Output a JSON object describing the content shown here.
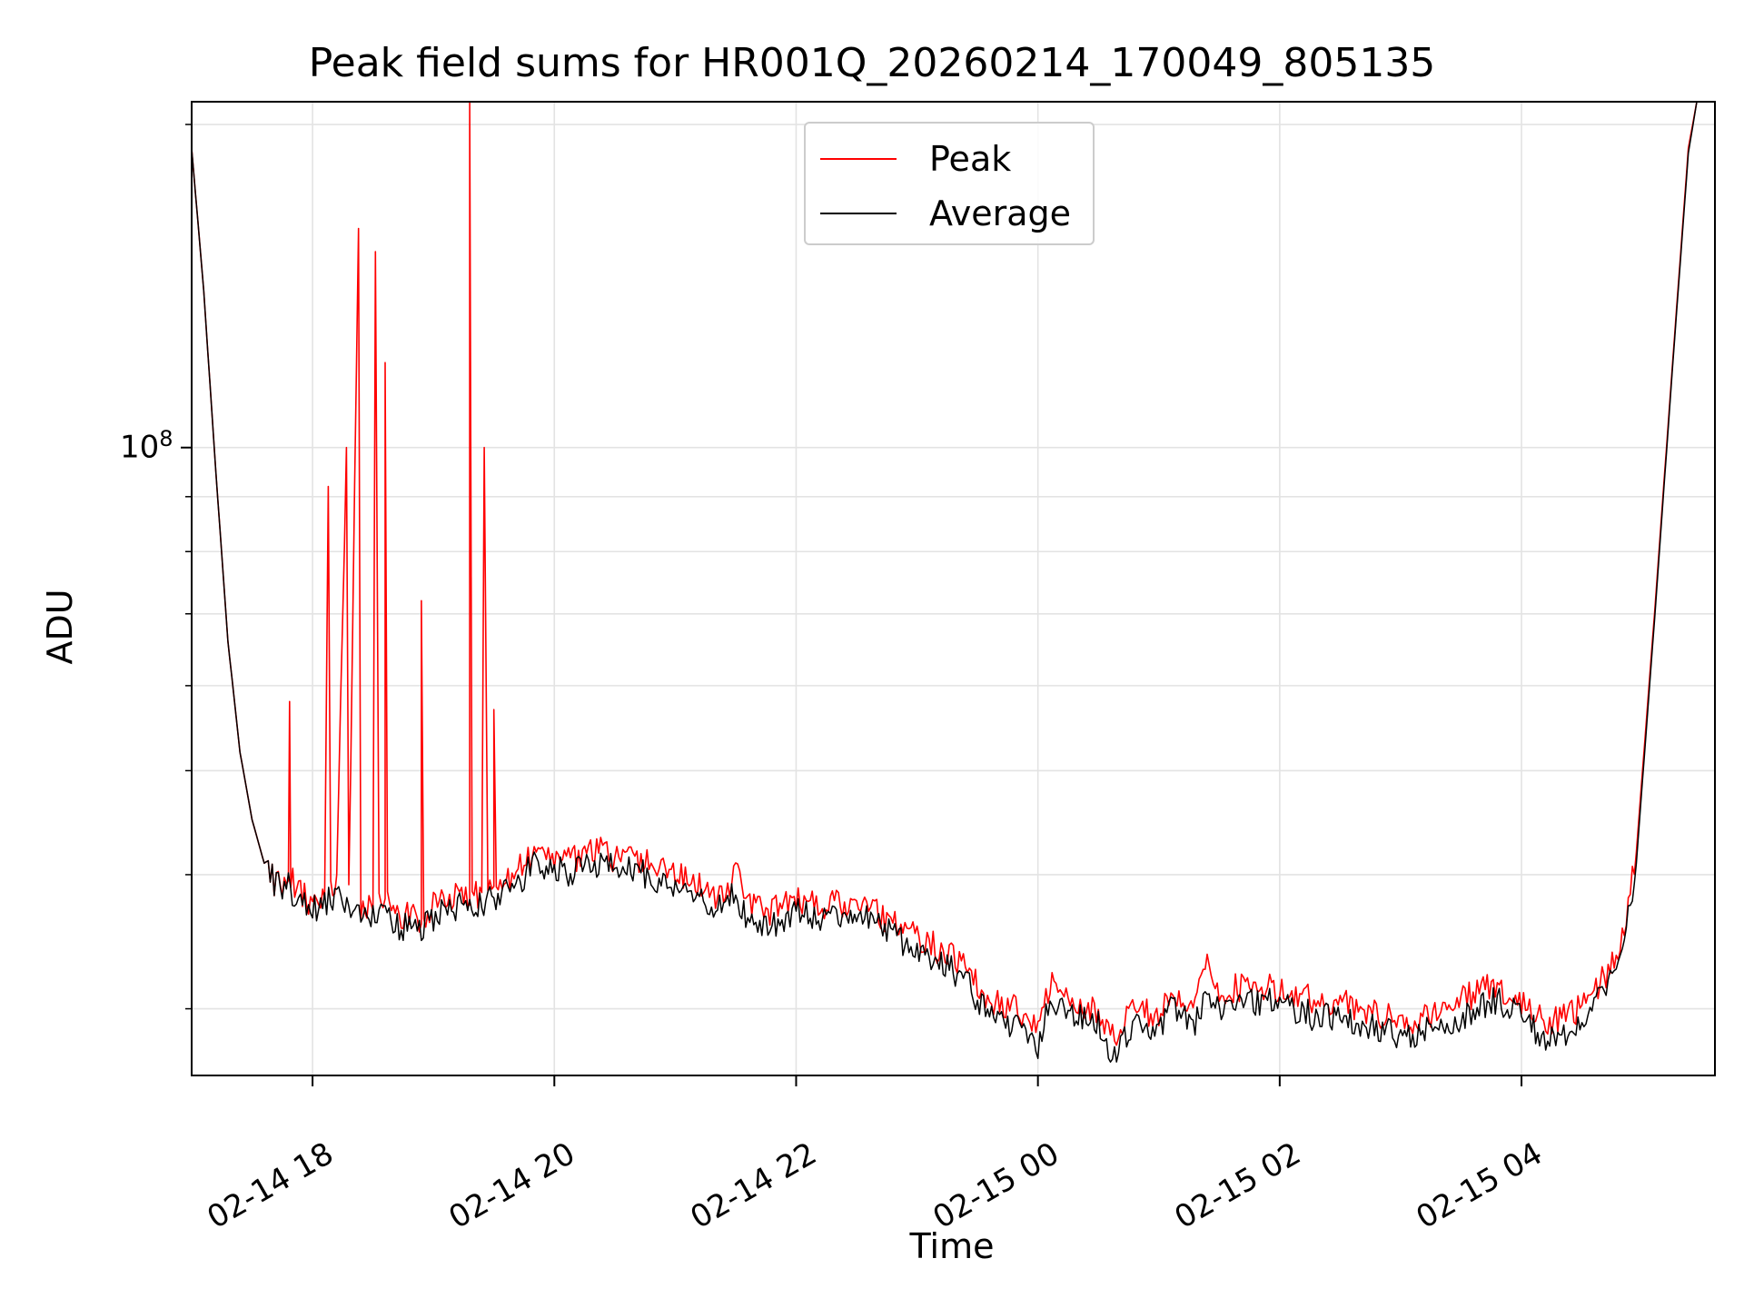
{
  "chart_data": {
    "type": "line",
    "title": "Peak field sums for HR001Q_20260214_170049_805135",
    "xlabel": "Time",
    "ylabel": "ADU",
    "yscale": "log",
    "ylim": [
      26000000,
      210000000
    ],
    "xlim": [
      17.0,
      29.6
    ],
    "x_units": "hours since 2026-02-14 00:00",
    "grid": true,
    "legend_position": "top-center",
    "x_ticks": [
      {
        "value": 18,
        "label": "02-14 18"
      },
      {
        "value": 20,
        "label": "02-14 20"
      },
      {
        "value": 22,
        "label": "02-14 22"
      },
      {
        "value": 24,
        "label": "02-15 00"
      },
      {
        "value": 26,
        "label": "02-15 02"
      },
      {
        "value": 28,
        "label": "02-15 04"
      }
    ],
    "y_ticks": [
      {
        "value": 100000000,
        "base": "10",
        "exp": "8"
      }
    ],
    "series": [
      {
        "name": "Peak",
        "color": "#ff0000",
        "points": [
          [
            17.0,
            190000000
          ],
          [
            17.1,
            140000000
          ],
          [
            17.2,
            95000000
          ],
          [
            17.3,
            66000000
          ],
          [
            17.4,
            52000000
          ],
          [
            17.5,
            45000000
          ],
          [
            17.6,
            41000000
          ],
          [
            17.7,
            39000000
          ],
          [
            17.8,
            39500000
          ],
          [
            17.81,
            58000000
          ],
          [
            17.82,
            39500000
          ],
          [
            17.9,
            38500000
          ],
          [
            18.0,
            37500000
          ],
          [
            18.1,
            38000000
          ],
          [
            18.13,
            92000000
          ],
          [
            18.15,
            38500000
          ],
          [
            18.2,
            39000000
          ],
          [
            18.28,
            100000000
          ],
          [
            18.3,
            38000000
          ],
          [
            18.38,
            160000000
          ],
          [
            18.4,
            37500000
          ],
          [
            18.5,
            37000000
          ],
          [
            18.52,
            150000000
          ],
          [
            18.55,
            37500000
          ],
          [
            18.6,
            38000000
          ],
          [
            18.6,
            120000000
          ],
          [
            18.62,
            37500000
          ],
          [
            18.7,
            37000000
          ],
          [
            18.8,
            36500000
          ],
          [
            18.9,
            36000000
          ],
          [
            18.9,
            72000000
          ],
          [
            18.92,
            36500000
          ],
          [
            19.0,
            37500000
          ],
          [
            19.1,
            38000000
          ],
          [
            19.2,
            38500000
          ],
          [
            19.3,
            37500000
          ],
          [
            19.3,
            210000000
          ],
          [
            19.32,
            38000000
          ],
          [
            19.4,
            38500000
          ],
          [
            19.42,
            100000000
          ],
          [
            19.45,
            38500000
          ],
          [
            19.5,
            39000000
          ],
          [
            19.5,
            57000000
          ],
          [
            19.52,
            39000000
          ],
          [
            19.6,
            39500000
          ],
          [
            19.7,
            40500000
          ],
          [
            19.8,
            41500000
          ],
          [
            19.9,
            42000000
          ],
          [
            20.0,
            41500000
          ],
          [
            20.1,
            41000000
          ],
          [
            20.2,
            41500000
          ],
          [
            20.3,
            42000000
          ],
          [
            20.4,
            42000000
          ],
          [
            20.5,
            41500000
          ],
          [
            20.6,
            41500000
          ],
          [
            20.7,
            41000000
          ],
          [
            20.8,
            41000000
          ],
          [
            21.0,
            40000000
          ],
          [
            21.2,
            39000000
          ],
          [
            21.4,
            38000000
          ],
          [
            21.5,
            40500000
          ],
          [
            21.6,
            37500000
          ],
          [
            21.8,
            37000000
          ],
          [
            22.0,
            38000000
          ],
          [
            22.2,
            37500000
          ],
          [
            22.4,
            37500000
          ],
          [
            22.6,
            37500000
          ],
          [
            22.8,
            36000000
          ],
          [
            23.0,
            35000000
          ],
          [
            23.2,
            34000000
          ],
          [
            23.4,
            33000000
          ],
          [
            23.6,
            30500000
          ],
          [
            23.8,
            30000000
          ],
          [
            24.0,
            28500000
          ],
          [
            24.1,
            31500000
          ],
          [
            24.3,
            30500000
          ],
          [
            24.5,
            30000000
          ],
          [
            24.6,
            28000000
          ],
          [
            24.8,
            30000000
          ],
          [
            25.0,
            29500000
          ],
          [
            25.1,
            31000000
          ],
          [
            25.3,
            30000000
          ],
          [
            25.4,
            33000000
          ],
          [
            25.5,
            31000000
          ],
          [
            25.7,
            31500000
          ],
          [
            25.9,
            31500000
          ],
          [
            26.1,
            31000000
          ],
          [
            26.3,
            30500000
          ],
          [
            26.5,
            30500000
          ],
          [
            26.7,
            30000000
          ],
          [
            26.9,
            29500000
          ],
          [
            27.0,
            29000000
          ],
          [
            27.2,
            29500000
          ],
          [
            27.4,
            30000000
          ],
          [
            27.6,
            31000000
          ],
          [
            27.8,
            31500000
          ],
          [
            28.0,
            30500000
          ],
          [
            28.2,
            29000000
          ],
          [
            28.4,
            29500000
          ],
          [
            28.6,
            31000000
          ],
          [
            28.8,
            33500000
          ],
          [
            28.95,
            42000000
          ],
          [
            29.1,
            70000000
          ],
          [
            29.25,
            120000000
          ],
          [
            29.38,
            190000000
          ],
          [
            29.45,
            210000000
          ],
          [
            29.6,
            210000000
          ]
        ]
      },
      {
        "name": "Average",
        "color": "#000000",
        "points": [
          [
            17.0,
            190000000
          ],
          [
            17.1,
            140000000
          ],
          [
            17.2,
            95000000
          ],
          [
            17.3,
            66000000
          ],
          [
            17.4,
            52000000
          ],
          [
            17.5,
            45000000
          ],
          [
            17.6,
            41000000
          ],
          [
            17.7,
            39000000
          ],
          [
            17.8,
            39000000
          ],
          [
            17.9,
            38000000
          ],
          [
            18.0,
            37000000
          ],
          [
            18.1,
            37500000
          ],
          [
            18.2,
            38500000
          ],
          [
            18.3,
            37000000
          ],
          [
            18.4,
            36500000
          ],
          [
            18.5,
            36500000
          ],
          [
            18.6,
            36500000
          ],
          [
            18.7,
            36000000
          ],
          [
            18.8,
            35500000
          ],
          [
            18.9,
            35500000
          ],
          [
            19.0,
            36500000
          ],
          [
            19.1,
            37000000
          ],
          [
            19.2,
            37500000
          ],
          [
            19.3,
            37000000
          ],
          [
            19.4,
            37500000
          ],
          [
            19.5,
            38000000
          ],
          [
            19.6,
            38500000
          ],
          [
            19.7,
            39500000
          ],
          [
            19.8,
            40500000
          ],
          [
            19.9,
            41000000
          ],
          [
            20.0,
            40500000
          ],
          [
            20.1,
            40000000
          ],
          [
            20.2,
            40500000
          ],
          [
            20.3,
            41000000
          ],
          [
            20.4,
            41000000
          ],
          [
            20.5,
            40500000
          ],
          [
            20.6,
            40500000
          ],
          [
            20.7,
            40000000
          ],
          [
            20.8,
            40000000
          ],
          [
            21.0,
            39000000
          ],
          [
            21.2,
            38000000
          ],
          [
            21.4,
            37000000
          ],
          [
            21.5,
            38500000
          ],
          [
            21.6,
            36500000
          ],
          [
            21.8,
            36000000
          ],
          [
            22.0,
            37000000
          ],
          [
            22.2,
            36500000
          ],
          [
            22.4,
            36500000
          ],
          [
            22.6,
            36500000
          ],
          [
            22.8,
            35000000
          ],
          [
            23.0,
            34000000
          ],
          [
            23.2,
            33000000
          ],
          [
            23.4,
            32000000
          ],
          [
            23.6,
            29500000
          ],
          [
            23.8,
            29000000
          ],
          [
            24.0,
            27500000
          ],
          [
            24.1,
            30500000
          ],
          [
            24.3,
            29500000
          ],
          [
            24.5,
            29000000
          ],
          [
            24.6,
            27000000
          ],
          [
            24.8,
            29000000
          ],
          [
            25.0,
            28500000
          ],
          [
            25.1,
            30000000
          ],
          [
            25.3,
            29000000
          ],
          [
            25.4,
            31500000
          ],
          [
            25.5,
            30000000
          ],
          [
            25.7,
            30500000
          ],
          [
            25.9,
            30500000
          ],
          [
            26.1,
            30000000
          ],
          [
            26.3,
            29500000
          ],
          [
            26.5,
            29500000
          ],
          [
            26.7,
            29000000
          ],
          [
            26.9,
            28500000
          ],
          [
            27.0,
            28000000
          ],
          [
            27.2,
            28500000
          ],
          [
            27.4,
            29000000
          ],
          [
            27.6,
            30000000
          ],
          [
            27.8,
            30500000
          ],
          [
            28.0,
            29500000
          ],
          [
            28.2,
            28000000
          ],
          [
            28.4,
            28500000
          ],
          [
            28.6,
            30000000
          ],
          [
            28.8,
            32500000
          ],
          [
            28.95,
            41000000
          ],
          [
            29.1,
            69000000
          ],
          [
            29.25,
            119000000
          ],
          [
            29.38,
            188000000
          ],
          [
            29.45,
            210000000
          ],
          [
            29.6,
            210000000
          ]
        ]
      }
    ]
  }
}
